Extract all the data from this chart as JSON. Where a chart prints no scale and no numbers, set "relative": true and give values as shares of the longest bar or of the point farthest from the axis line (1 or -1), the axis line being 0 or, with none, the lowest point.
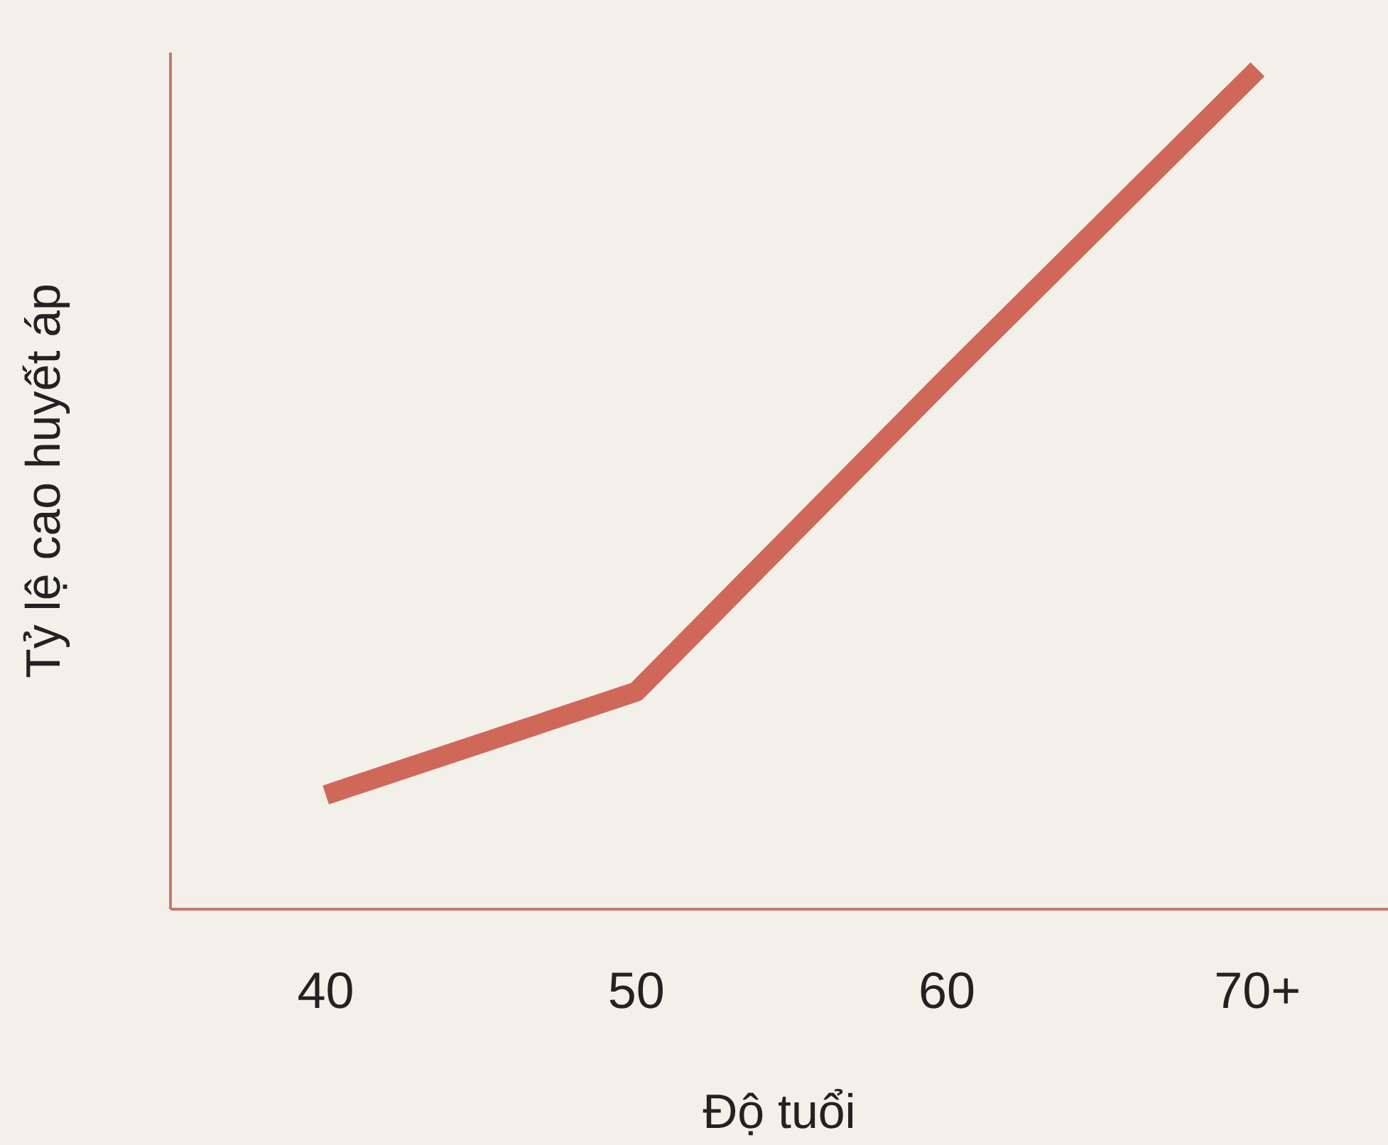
{
  "chart_data": {
    "type": "line",
    "relative": true,
    "xlabel": "Độ tuổi",
    "ylabel": "Tỷ lệ cao huyết áp",
    "categories": [
      "40",
      "50",
      "60",
      "70+"
    ],
    "series": [
      {
        "color": "#d0685a",
        "values": [
          0.136,
          0.259,
          0.633,
          1
        ]
      }
    ],
    "grid": false,
    "legend": false,
    "marker": "none",
    "line_style": "solid"
  }
}
